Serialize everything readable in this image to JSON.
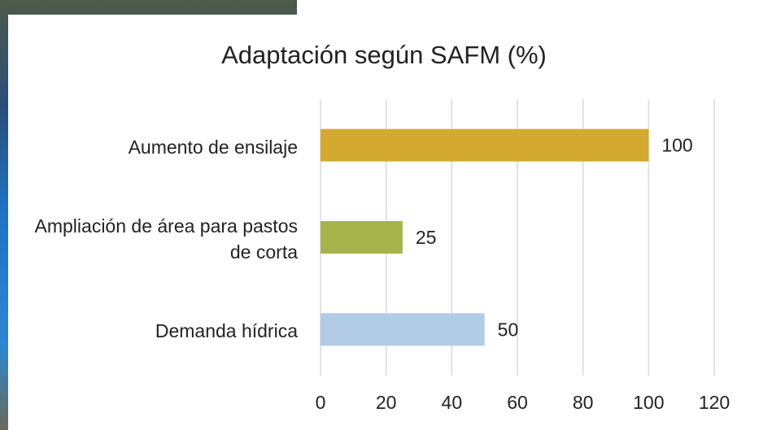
{
  "chart_data": {
    "type": "bar",
    "orientation": "horizontal",
    "title": "Adaptación según SAFM (%)",
    "categories": [
      "Aumento de ensilaje",
      "Ampliación de área para pastos de corta",
      "Demanda hídrica"
    ],
    "values": [
      100,
      25,
      50
    ],
    "colors": [
      "#d3a92f",
      "#a6b34b",
      "#b2cbe7"
    ],
    "xlim": [
      0,
      120
    ],
    "xticks": [
      0,
      20,
      40,
      60,
      80,
      100,
      120
    ],
    "grid": true
  }
}
